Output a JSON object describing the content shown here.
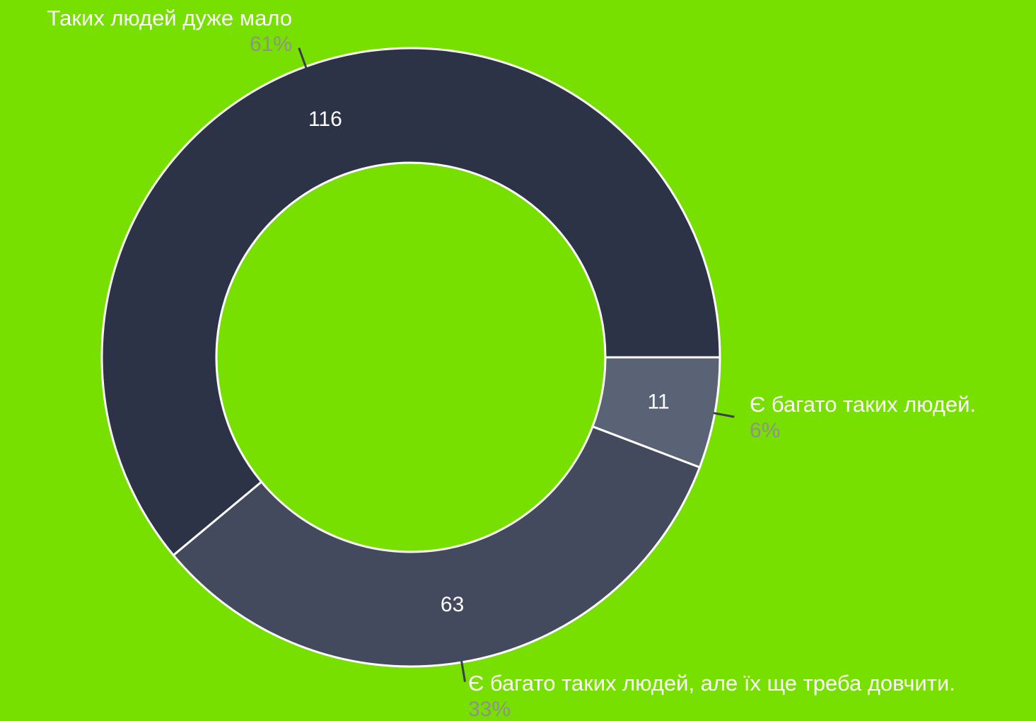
{
  "chart_data": {
    "type": "donut",
    "categories": [
      "Є багато таких людей.",
      "Є багато таких людей, але їх ще треба довчити.",
      "Таких людей дуже мало"
    ],
    "values": [
      11,
      63,
      116
    ],
    "percentages": [
      6,
      33,
      61
    ],
    "percentage_labels": [
      "6%",
      "33%",
      "61%"
    ],
    "colors": [
      "#5a6275",
      "#434a5e",
      "#2d3347"
    ]
  }
}
